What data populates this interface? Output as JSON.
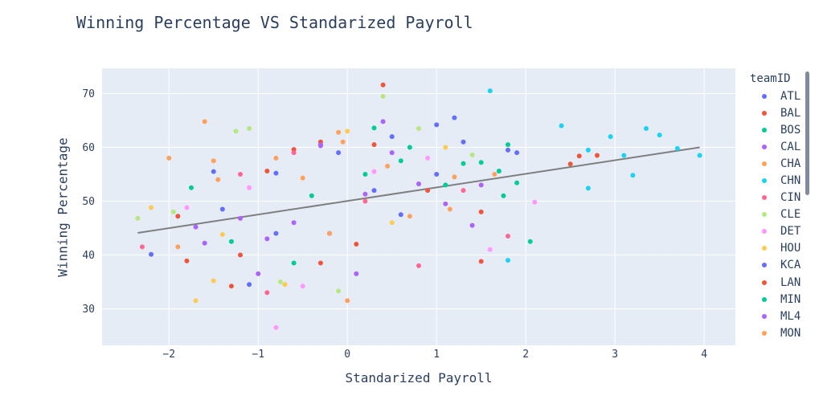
{
  "chart_data": {
    "type": "scatter",
    "title": "Winning Percentage VS Standarized Payroll",
    "xlabel": "Standarized Payroll",
    "ylabel": "Winning Percentage",
    "xlim": [
      -2.75,
      4.35
    ],
    "ylim": [
      23.2,
      74.7
    ],
    "xticks": [
      -2,
      -1,
      0,
      1,
      2,
      3,
      4
    ],
    "yticks": [
      30,
      40,
      50,
      60,
      70
    ],
    "grid": true,
    "legend": {
      "title": "teamID",
      "placement": "right"
    },
    "trendline": {
      "x": [
        -2.35,
        3.95
      ],
      "y": [
        44.1,
        60.0
      ]
    },
    "series": [
      {
        "name": "ATL",
        "color": "#636efa",
        "x": [
          -2.2,
          -1.4,
          -0.8,
          0.3,
          1.0,
          1.2,
          1.8,
          -0.2,
          0.6
        ],
        "y": [
          40.1,
          48.5,
          55.2,
          52.0,
          64.2,
          65.5,
          59.5,
          44.0,
          47.5
        ]
      },
      {
        "name": "BAL",
        "color": "#EF553B",
        "x": [
          -1.9,
          -1.3,
          -0.6,
          0.4,
          2.5,
          2.8,
          0.1,
          -0.3,
          1.5
        ],
        "y": [
          47.2,
          34.2,
          59.6,
          71.6,
          56.9,
          58.5,
          42.0,
          38.5,
          48.0
        ]
      },
      {
        "name": "BOS",
        "color": "#00cc96",
        "x": [
          1.5,
          1.7,
          1.9,
          2.05,
          0.3,
          0.6,
          1.1,
          1.8
        ],
        "y": [
          57.2,
          55.6,
          53.4,
          42.5,
          63.6,
          57.5,
          53.0,
          60.5
        ]
      },
      {
        "name": "CAL",
        "color": "#ab63fa",
        "x": [
          -1.7,
          -1.0,
          -0.3,
          0.2,
          0.8,
          1.4,
          -0.6,
          0.4
        ],
        "y": [
          45.2,
          36.5,
          60.3,
          51.3,
          53.2,
          45.5,
          46.0,
          64.8
        ]
      },
      {
        "name": "CHA",
        "color": "#FFA15A",
        "x": [
          -2.0,
          -1.5,
          -1.6,
          -0.5,
          0.0,
          0.7,
          1.2,
          -0.1
        ],
        "y": [
          58.0,
          57.5,
          64.8,
          54.3,
          31.5,
          47.2,
          54.5,
          62.8
        ]
      },
      {
        "name": "CHN",
        "color": "#19d3f3",
        "x": [
          1.6,
          2.4,
          2.7,
          2.95,
          3.1,
          3.35,
          3.5,
          3.7,
          3.95,
          2.7,
          3.2,
          1.8
        ],
        "y": [
          70.5,
          64.0,
          59.5,
          62.0,
          58.5,
          63.5,
          62.3,
          59.8,
          58.5,
          52.4,
          54.8,
          39.0
        ]
      },
      {
        "name": "CIN",
        "color": "#FF6692",
        "x": [
          -2.3,
          -1.2,
          -0.6,
          0.2,
          0.8,
          1.3,
          1.8,
          -0.9
        ],
        "y": [
          41.5,
          55.0,
          59.0,
          50.0,
          38.0,
          52.0,
          43.5,
          33.0
        ]
      },
      {
        "name": "CLE",
        "color": "#B6E880",
        "x": [
          -2.35,
          -1.95,
          -1.25,
          -0.75,
          -0.1,
          0.4,
          0.8,
          1.4,
          -1.1
        ],
        "y": [
          46.8,
          48.0,
          63.0,
          35.0,
          33.3,
          69.5,
          63.5,
          58.6,
          63.5
        ]
      },
      {
        "name": "DET",
        "color": "#FF97FF",
        "x": [
          -1.8,
          -1.1,
          -0.5,
          0.3,
          0.9,
          1.6,
          2.1,
          -0.8
        ],
        "y": [
          48.8,
          52.5,
          34.2,
          55.5,
          58.0,
          41.0,
          49.8,
          26.5
        ]
      },
      {
        "name": "HOU",
        "color": "#FECB52",
        "x": [
          -2.2,
          -1.7,
          -1.5,
          -0.7,
          0.0,
          0.5,
          1.1,
          -1.4
        ],
        "y": [
          48.8,
          31.5,
          35.2,
          34.5,
          63.0,
          46.0,
          60.0,
          43.8
        ]
      },
      {
        "name": "KCA",
        "color": "#636efa",
        "x": [
          -1.5,
          -0.8,
          -0.1,
          0.5,
          1.0,
          1.3,
          1.9,
          -1.1
        ],
        "y": [
          55.5,
          44.0,
          59.0,
          62.0,
          55.0,
          61.0,
          59.0,
          34.5
        ]
      },
      {
        "name": "LAN",
        "color": "#EF553B",
        "x": [
          -1.8,
          -1.2,
          -0.3,
          0.3,
          0.9,
          1.5,
          2.6,
          -0.9
        ],
        "y": [
          38.9,
          40.0,
          61.0,
          60.5,
          52.0,
          38.8,
          58.4,
          55.6
        ]
      },
      {
        "name": "MIN",
        "color": "#00cc96",
        "x": [
          -1.75,
          -1.3,
          -0.4,
          0.2,
          0.7,
          1.3,
          1.75,
          -0.6
        ],
        "y": [
          52.5,
          42.5,
          51.0,
          55.0,
          60.0,
          57.0,
          51.0,
          38.5
        ]
      },
      {
        "name": "ML4",
        "color": "#ab63fa",
        "x": [
          -1.6,
          -0.9,
          -0.3,
          0.5,
          1.1,
          1.5,
          -1.2,
          0.1
        ],
        "y": [
          42.2,
          43.0,
          60.5,
          59.0,
          49.5,
          53.0,
          46.8,
          36.5
        ]
      },
      {
        "name": "MON",
        "color": "#FFA15A",
        "x": [
          -1.9,
          -1.45,
          -0.8,
          -0.2,
          0.45,
          1.15,
          1.65,
          -0.05
        ],
        "y": [
          41.5,
          54.0,
          58.0,
          44.0,
          56.5,
          48.5,
          55.0,
          61.0
        ]
      }
    ]
  }
}
